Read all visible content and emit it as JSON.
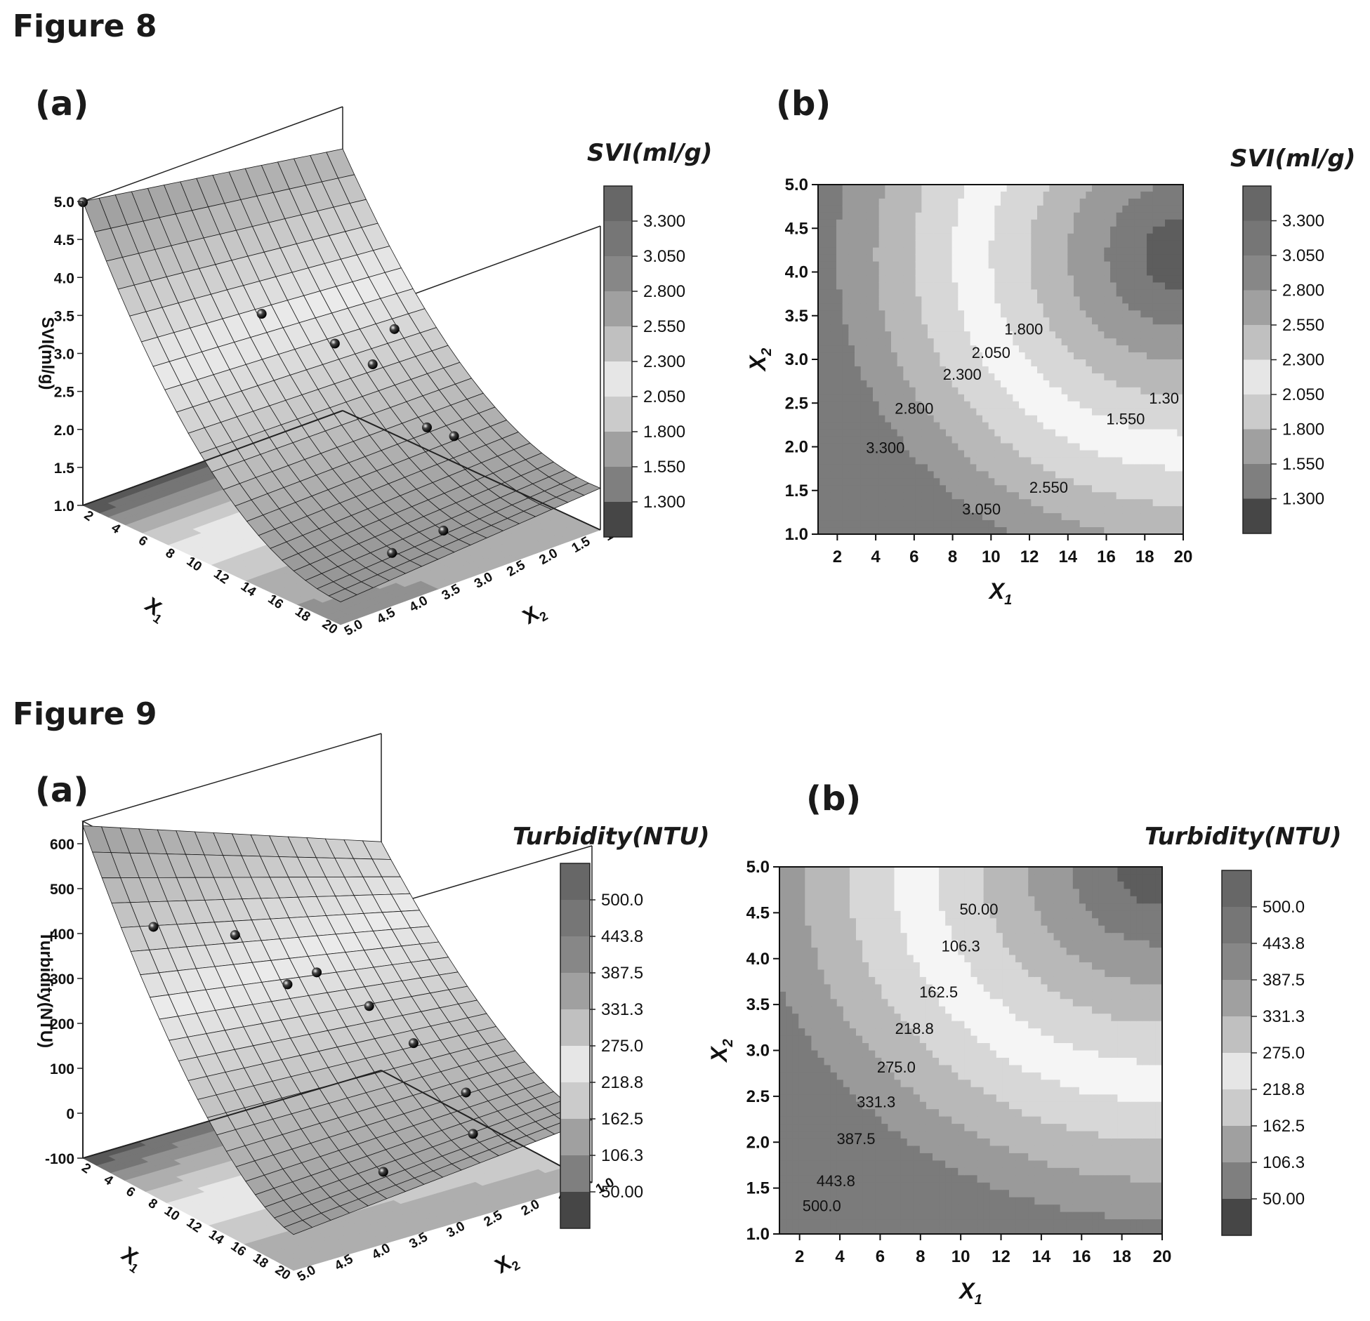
{
  "figure8": {
    "title": "Figure 8",
    "panel_a": "(a)",
    "panel_b": "(b)",
    "colorbar_title": "SVI(ml/g)"
  },
  "figure9": {
    "title": "Figure 9",
    "panel_a": "(a)",
    "panel_b": "(b)",
    "colorbar_title": "Turbidity(NTU)"
  },
  "chart_data": [
    {
      "id": "fig8a",
      "type": "surface3d",
      "zlabel": "SVI(ml/g)",
      "xlabel": "X1",
      "ylabel": "X2",
      "x_ticks": [
        "2",
        "4",
        "6",
        "8",
        "10",
        "12",
        "14",
        "16",
        "18",
        "20"
      ],
      "y_ticks": [
        "1.0",
        "1.5",
        "2.0",
        "2.5",
        "3.0",
        "3.5",
        "4.0",
        "4.5",
        "5.0"
      ],
      "z_ticks": [
        "1.0",
        "1.5",
        "2.0",
        "2.5",
        "3.0",
        "3.5",
        "4.0",
        "4.5",
        "5.0"
      ],
      "xlim": [
        1,
        20
      ],
      "ylim": [
        1,
        5
      ],
      "zlim": [
        1,
        5
      ],
      "points": [
        {
          "x": 1.0,
          "y": 5.0,
          "z": 4.99
        },
        {
          "x": 7.0,
          "y": 3.5,
          "z": 3.55
        },
        {
          "x": 10.0,
          "y": 3.0,
          "z": 3.25
        },
        {
          "x": 12.0,
          "y": 2.5,
          "z": 3.45
        },
        {
          "x": 8.0,
          "y": 2.0,
          "z": 2.5
        },
        {
          "x": 12.0,
          "y": 2.0,
          "z": 2.0
        },
        {
          "x": 14.0,
          "y": 2.0,
          "z": 2.05
        },
        {
          "x": 18.0,
          "y": 3.0,
          "z": 1.45
        },
        {
          "x": 19.0,
          "y": 4.0,
          "z": 1.55
        }
      ]
    },
    {
      "id": "fig8b",
      "type": "contour",
      "xlabel": "X1",
      "ylabel": "X2",
      "xlim": [
        1,
        20
      ],
      "ylim": [
        1,
        5
      ],
      "x_ticks": [
        "2",
        "4",
        "6",
        "8",
        "10",
        "12",
        "14",
        "16",
        "18",
        "20"
      ],
      "y_ticks": [
        "1.0",
        "1.5",
        "2.0",
        "2.5",
        "3.0",
        "3.5",
        "4.0",
        "4.5",
        "5.0"
      ],
      "levels": [
        "3.300",
        "3.050",
        "2.800",
        "2.550",
        "2.300",
        "2.050",
        "1.800",
        "1.550",
        "1.300"
      ],
      "contour_labels": [
        {
          "text": "1.800",
          "x": 11.7,
          "y": 3.35
        },
        {
          "text": "2.050",
          "x": 10.0,
          "y": 3.08
        },
        {
          "text": "2.300",
          "x": 8.5,
          "y": 2.83
        },
        {
          "text": "2.800",
          "x": 6.0,
          "y": 2.44
        },
        {
          "text": "3.300",
          "x": 4.5,
          "y": 1.99
        },
        {
          "text": "2.550",
          "x": 13.0,
          "y": 1.54
        },
        {
          "text": "3.050",
          "x": 9.5,
          "y": 1.29
        },
        {
          "text": "1.30",
          "x": 19.0,
          "y": 2.56
        },
        {
          "text": "1.550",
          "x": 17.0,
          "y": 2.32
        }
      ]
    },
    {
      "id": "fig8_colorbar",
      "type": "colorbar",
      "labels": [
        "3.300",
        "3.050",
        "2.800",
        "2.550",
        "2.300",
        "2.050",
        "1.800",
        "1.550",
        "1.300"
      ]
    },
    {
      "id": "fig9a",
      "type": "surface3d",
      "zlabel": "Turbidity(NTU)",
      "xlabel": "X1",
      "ylabel": "X2",
      "x_ticks": [
        "2",
        "4",
        "6",
        "8",
        "10",
        "12",
        "14",
        "16",
        "18",
        "20"
      ],
      "y_ticks": [
        "1.0",
        "1.5",
        "2.0",
        "2.5",
        "3.0",
        "3.5",
        "4.0",
        "4.5",
        "5.0"
      ],
      "z_ticks": [
        "-100",
        "0",
        "100",
        "200",
        "300",
        "400",
        "500",
        "600"
      ],
      "xlim": [
        1,
        20
      ],
      "ylim": [
        1,
        5
      ],
      "zlim": [
        -100,
        650
      ],
      "points": [
        {
          "x": 4.0,
          "y": 4.5,
          "z": 430
        },
        {
          "x": 8.0,
          "y": 4.0,
          "z": 440
        },
        {
          "x": 12.0,
          "y": 3.5,
          "z": 385
        },
        {
          "x": 6.0,
          "y": 3.0,
          "z": 255
        },
        {
          "x": 10.0,
          "y": 2.5,
          "z": 235
        },
        {
          "x": 14.0,
          "y": 2.5,
          "z": 205
        },
        {
          "x": 12.0,
          "y": 1.5,
          "z": 20
        },
        {
          "x": 16.0,
          "y": 2.0,
          "z": 5
        },
        {
          "x": 18.0,
          "y": 3.5,
          "z": 20
        }
      ]
    },
    {
      "id": "fig9b",
      "type": "contour",
      "xlabel": "X1",
      "ylabel": "X2",
      "xlim": [
        1,
        20
      ],
      "ylim": [
        1,
        5
      ],
      "x_ticks": [
        "2",
        "4",
        "6",
        "8",
        "10",
        "12",
        "14",
        "16",
        "18",
        "20"
      ],
      "y_ticks": [
        "1.0",
        "1.5",
        "2.0",
        "2.5",
        "3.0",
        "3.5",
        "4.0",
        "4.5",
        "5.0"
      ],
      "levels": [
        "500.0",
        "443.8",
        "387.5",
        "331.3",
        "275.0",
        "218.8",
        "162.5",
        "106.3",
        "50.00"
      ],
      "contour_labels": [
        {
          "text": "50.00",
          "x": 10.9,
          "y": 4.54
        },
        {
          "text": "106.3",
          "x": 10.0,
          "y": 4.14
        },
        {
          "text": "162.5",
          "x": 8.9,
          "y": 3.64
        },
        {
          "text": "218.8",
          "x": 7.7,
          "y": 3.24
        },
        {
          "text": "275.0",
          "x": 6.8,
          "y": 2.82
        },
        {
          "text": "331.3",
          "x": 5.8,
          "y": 2.44
        },
        {
          "text": "387.5",
          "x": 4.8,
          "y": 2.04
        },
        {
          "text": "443.8",
          "x": 3.8,
          "y": 1.58
        },
        {
          "text": "500.0",
          "x": 3.1,
          "y": 1.31
        }
      ]
    },
    {
      "id": "fig9_colorbar",
      "type": "colorbar",
      "labels": [
        "500.0",
        "443.8",
        "387.5",
        "331.3",
        "275.0",
        "218.8",
        "162.5",
        "106.3",
        "50.00"
      ]
    }
  ]
}
